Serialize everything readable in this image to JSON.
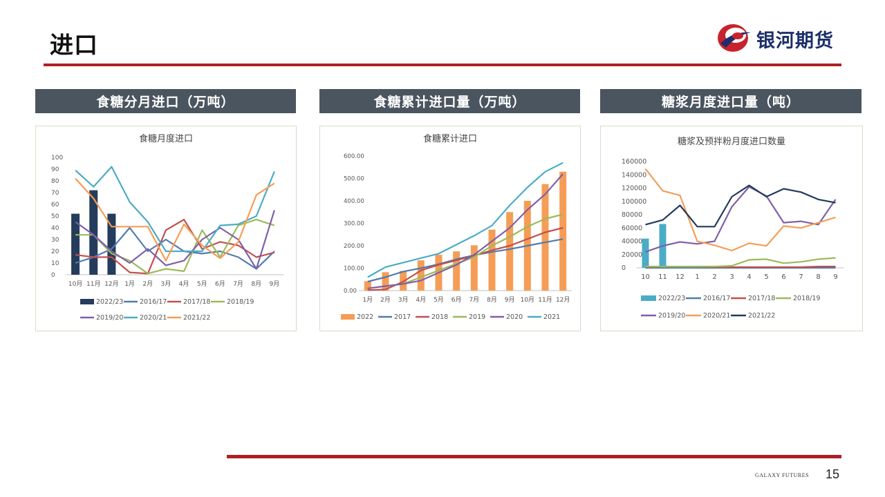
{
  "slide": {
    "title": "进口",
    "logo_text": "银河期货",
    "footer_brand": "GALAXY FUTURES",
    "page_number": "15",
    "colors": {
      "accent": "#b01e23",
      "header_bg": "#4b5560",
      "logo_blue": "#1c2f6b"
    }
  },
  "panels": [
    {
      "header": "食糖分月进口（万吨）"
    },
    {
      "header": "食糖累计进口量（万吨）"
    },
    {
      "header": "糖浆月度进口量（吨）"
    }
  ],
  "chart_data": [
    {
      "type": "bar+line",
      "title": "食糖月度进口",
      "categories": [
        "10月",
        "11月",
        "12月",
        "1月",
        "2月",
        "3月",
        "4月",
        "5月",
        "6月",
        "7月",
        "8月",
        "9月"
      ],
      "ylim": [
        0,
        100
      ],
      "yticks": [
        "0",
        "10",
        "20",
        "30",
        "40",
        "50",
        "60",
        "70",
        "80",
        "90",
        "100"
      ],
      "bar_series": [
        {
          "name": "2022/23",
          "color": "#253c5c",
          "values": [
            52,
            72,
            52
          ]
        }
      ],
      "line_series": [
        {
          "name": "2016/17",
          "color": "#4f7bb0",
          "values": [
            10,
            15,
            22,
            40,
            20,
            30,
            20,
            18,
            20,
            15,
            5,
            20
          ]
        },
        {
          "name": "2017/18",
          "color": "#c0504d",
          "values": [
            17,
            15,
            15,
            2,
            1,
            38,
            47,
            22,
            28,
            25,
            15,
            19
          ]
        },
        {
          "name": "2018/19",
          "color": "#9bbb59",
          "values": [
            34,
            34,
            18,
            12,
            1,
            5,
            3,
            38,
            15,
            42,
            47,
            42
          ]
        },
        {
          "name": "2019/20",
          "color": "#7f5fa8",
          "values": [
            45,
            34,
            20,
            10,
            22,
            8,
            12,
            30,
            40,
            30,
            5,
            55
          ]
        },
        {
          "name": "2020/21",
          "color": "#4bacc6",
          "values": [
            89,
            75,
            92,
            62,
            45,
            20,
            20,
            20,
            42,
            43,
            50,
            88
          ]
        },
        {
          "name": "2021/22",
          "color": "#f59d56",
          "values": [
            82,
            65,
            41,
            41,
            41,
            12,
            43,
            25,
            14,
            28,
            68,
            78
          ]
        }
      ],
      "legend": [
        "2022/23",
        "2016/17",
        "2017/18",
        "2018/19",
        "2019/20",
        "2020/21",
        "2021/22"
      ]
    },
    {
      "type": "bar+line",
      "title": "食糖累计进口",
      "categories": [
        "1月",
        "2月",
        "3月",
        "4月",
        "5月",
        "6月",
        "7月",
        "8月",
        "9月",
        "10月",
        "11月",
        "12月"
      ],
      "ylim": [
        0,
        600
      ],
      "yticks": [
        "0.00",
        "100.00",
        "200.00",
        "300.00",
        "400.00",
        "500.00",
        "600.00"
      ],
      "bar_series": [
        {
          "name": "2022",
          "color": "#f59d56",
          "values": [
            42,
            82,
            88,
            135,
            160,
            175,
            202,
            272,
            350,
            400,
            475,
            530
          ]
        }
      ],
      "line_series": [
        {
          "name": "2017",
          "color": "#4f7bb0",
          "values": [
            40,
            60,
            85,
            100,
            118,
            140,
            158,
            172,
            185,
            200,
            215,
            230
          ]
        },
        {
          "name": "2018",
          "color": "#c0504d",
          "values": [
            2,
            5,
            40,
            90,
            115,
            135,
            155,
            180,
            200,
            230,
            260,
            280
          ]
        },
        {
          "name": "2019",
          "color": "#9bbb59",
          "values": [
            10,
            20,
            30,
            60,
            90,
            120,
            150,
            200,
            240,
            285,
            320,
            340
          ]
        },
        {
          "name": "2020",
          "color": "#7f5fa8",
          "values": [
            10,
            20,
            30,
            45,
            80,
            115,
            160,
            220,
            280,
            360,
            430,
            520
          ]
        },
        {
          "name": "2021",
          "color": "#4bacc6",
          "values": [
            60,
            105,
            125,
            145,
            165,
            205,
            245,
            290,
            380,
            460,
            530,
            570
          ]
        }
      ],
      "legend": [
        "2022",
        "2017",
        "2018",
        "2019",
        "2020",
        "2021"
      ]
    },
    {
      "type": "bar+line",
      "title": "糖浆及预拌粉月度进口数量",
      "categories": [
        "10",
        "11",
        "12",
        "1",
        "2",
        "3",
        "4",
        "5",
        "6",
        "7",
        "8",
        "9"
      ],
      "ylim": [
        0,
        160000
      ],
      "yticks": [
        "0",
        "20000",
        "40000",
        "60000",
        "80000",
        "100000",
        "120000",
        "140000",
        "160000"
      ],
      "bar_series": [
        {
          "name": "2022/23",
          "color": "#4bacc6",
          "values": [
            44000,
            66000
          ]
        }
      ],
      "line_series": [
        {
          "name": "2016/17",
          "color": "#4f7bb0",
          "values": [
            0,
            0,
            0,
            0,
            0,
            0,
            0,
            0,
            0,
            0,
            0,
            0
          ]
        },
        {
          "name": "2017/18",
          "color": "#c0504d",
          "values": [
            1000,
            2000,
            2000,
            2000,
            1000,
            1000,
            1000,
            1000,
            1000,
            1000,
            2000,
            2000
          ]
        },
        {
          "name": "2018/19",
          "color": "#9bbb59",
          "values": [
            2000,
            2000,
            2000,
            2000,
            2000,
            3000,
            12000,
            13000,
            7000,
            9000,
            13000,
            15000
          ]
        },
        {
          "name": "2019/20",
          "color": "#7f5fa8",
          "values": [
            24000,
            33000,
            39000,
            36000,
            40000,
            92000,
            122000,
            108000,
            68000,
            70000,
            65000,
            103000
          ]
        },
        {
          "name": "2020/21",
          "color": "#f59d56",
          "values": [
            149000,
            116000,
            109000,
            40000,
            34000,
            26000,
            37000,
            33000,
            63000,
            60000,
            68000,
            76000
          ]
        },
        {
          "name": "2021/22",
          "color": "#1f3b5c",
          "values": [
            65000,
            72000,
            94000,
            62000,
            62000,
            107000,
            124000,
            107000,
            119000,
            114000,
            103000,
            98000
          ]
        }
      ],
      "legend": [
        "2022/23",
        "2016/17",
        "2017/18",
        "2018/19",
        "2019/20",
        "2020/21",
        "2021/22"
      ]
    }
  ]
}
